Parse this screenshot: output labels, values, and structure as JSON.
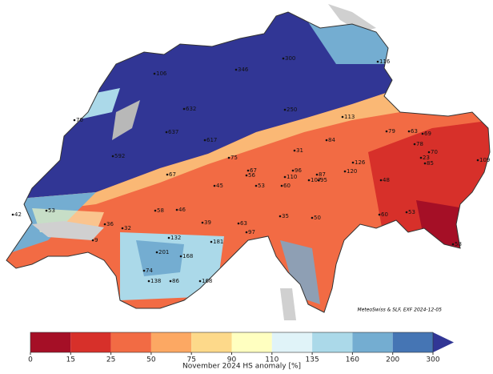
{
  "map": {
    "credit": "MeteoSwiss & SLF, EXF 2024-12-05",
    "station_values": [
      106,
      346,
      300,
      116,
      632,
      637,
      617,
      70,
      592,
      250,
      113,
      79,
      63,
      69,
      31,
      84,
      126,
      120,
      87,
      96,
      110,
      78,
      70,
      23,
      85,
      67,
      75,
      67,
      56,
      45,
      53,
      60,
      107,
      95,
      58,
      46,
      39,
      63,
      97,
      42,
      53,
      36,
      32,
      9,
      132,
      181,
      201,
      168,
      74,
      138,
      86,
      168,
      35,
      50,
      48,
      60,
      53,
      109,
      58
    ],
    "colorbar": {
      "label": "November 2024 HS anomaly [%]",
      "ticks": [
        0,
        15,
        25,
        50,
        75,
        90,
        110,
        135,
        160,
        200,
        300
      ],
      "colors": [
        "#a50f26",
        "#d7302a",
        "#f26b44",
        "#fca863",
        "#fdd98a",
        "#ffffc0",
        "#e0f3f8",
        "#abd9e9",
        "#74add1",
        "#4575b4",
        "#313695"
      ]
    }
  }
}
